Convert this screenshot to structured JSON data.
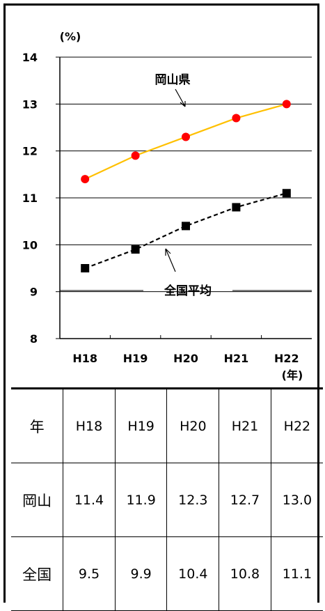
{
  "chart_data": {
    "type": "line",
    "categories": [
      "H18",
      "H19",
      "H20",
      "H21",
      "H22"
    ],
    "series": [
      {
        "name": "岡山県",
        "values": [
          11.4,
          11.9,
          12.3,
          12.7,
          13.0
        ],
        "color": "#ffc000",
        "marker": "circle",
        "marker_color": "#ff0000",
        "line_style": "solid"
      },
      {
        "name": "全国平均",
        "values": [
          9.5,
          9.9,
          10.4,
          10.8,
          11.1
        ],
        "color": "#000000",
        "marker": "square",
        "marker_color": "#000000",
        "line_style": "dashed"
      }
    ],
    "ylim": [
      8,
      14
    ],
    "yticks": [
      8,
      9,
      10,
      11,
      12,
      13,
      14
    ],
    "ylabel": "(%)",
    "xunit": "(年)",
    "grid": true
  },
  "table": {
    "header": [
      "年",
      "H18",
      "H19",
      "H20",
      "H21",
      "H22"
    ],
    "rows": [
      [
        "岡山",
        "11.4",
        "11.9",
        "12.3",
        "12.7",
        "13.0"
      ],
      [
        "全国",
        "9.5",
        "9.9",
        "10.4",
        "10.8",
        "11.1"
      ]
    ]
  }
}
